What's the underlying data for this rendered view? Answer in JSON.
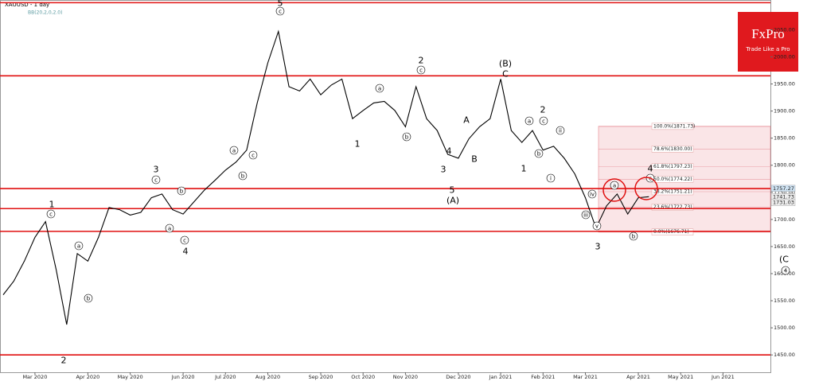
{
  "chart_data": {
    "type": "line",
    "title": "XAUUSD - 1 day",
    "indicator": "BB(20,2,0,2.0)",
    "categories": [
      null,
      null,
      null,
      "Mar 2020",
      null,
      null,
      null,
      null,
      "Apr 2020",
      null,
      null,
      null,
      "May 2020",
      null,
      null,
      null,
      null,
      "Jun 2020",
      null,
      null,
      null,
      "Jul 2020",
      null,
      null,
      null,
      "Aug 2020",
      null,
      null,
      null,
      null,
      "Sep 2020",
      null,
      null,
      null,
      "Oct 2020",
      null,
      null,
      null,
      "Nov 2020",
      null,
      null,
      null,
      null,
      "Dec 2020",
      null,
      null,
      null,
      "Jan 2021",
      null,
      null,
      null,
      "Feb 2021",
      null,
      null,
      null,
      "Mar 2021",
      null,
      null,
      null,
      null,
      "Apr 2021",
      null,
      null,
      null,
      "May 2021",
      null,
      null,
      null,
      "Jun 2021"
    ],
    "series": [
      {
        "name": "XAUUSD",
        "color": "#000000",
        "values": [
          1561,
          1586,
          1623,
          1667,
          1696,
          1608,
          1506,
          1637,
          1623,
          1667,
          1722,
          1718,
          1708,
          1713,
          1740,
          1747,
          1718,
          1710,
          1732,
          1754,
          1772,
          1791,
          1806,
          1828,
          1915,
          1989,
          2047,
          1945,
          1937,
          1959,
          1930,
          1948,
          1959,
          1886,
          1901,
          1915,
          1918,
          1901,
          1871,
          1945,
          1886,
          1864,
          1820,
          1813,
          1849,
          1871,
          1886,
          1959,
          1864,
          1842,
          1864,
          1828,
          1835,
          1813,
          1784,
          1740,
          1684,
          1725,
          1747,
          1710,
          1740,
          1742,
          null,
          null,
          null,
          null,
          null,
          null,
          null
        ]
      }
    ],
    "ylim": [
      1418,
      2102
    ],
    "yticks": [
      {
        "value": 1450,
        "label": "1450.00"
      },
      {
        "value": 1500,
        "label": "1500.00"
      },
      {
        "value": 1550,
        "label": "1550.00"
      },
      {
        "value": 1600,
        "label": "1600.00"
      },
      {
        "value": 1650,
        "label": "1650.00"
      },
      {
        "value": 1700,
        "label": "1700.00"
      },
      {
        "value": 1750,
        "label": "1750.00"
      },
      {
        "value": 1800,
        "label": "1800.00"
      },
      {
        "value": 1850,
        "label": "1850.00"
      },
      {
        "value": 1900,
        "label": "1900.00"
      },
      {
        "value": 1950,
        "label": "1950.00"
      },
      {
        "value": 2000,
        "label": "2000.00"
      },
      {
        "value": 2050,
        "label": "2050.00"
      }
    ],
    "hlines": [
      2100,
      1965,
      1757,
      1720,
      1678,
      1450
    ],
    "hline_color": "#e01010",
    "fib_levels": [
      {
        "value": 1871.73,
        "label": "100.0%(1871.73)"
      },
      {
        "value": 1830.0,
        "label": "78.6%(1830.00)"
      },
      {
        "value": 1797.23,
        "label": "61.8%(1797.23)"
      },
      {
        "value": 1774.22,
        "label": "50.0%(1774.22)"
      },
      {
        "value": 1751.21,
        "label": "38.2%(1751.21)"
      },
      {
        "value": 1722.73,
        "label": "23.6%(1722.73)"
      },
      {
        "value": 1676.71,
        "label": "0.0%(1676.71)"
      }
    ],
    "price_labels": [
      1757.27,
      1741.73,
      1731.03
    ],
    "wave_labels": [
      "1",
      "c",
      "2",
      "a",
      "b",
      "3",
      "c",
      "b",
      "a",
      "c",
      "4",
      "a",
      "b",
      "c",
      "5",
      "c",
      "a",
      "b",
      "1",
      "2",
      "c",
      "4",
      "3",
      "5",
      "(A)",
      "A",
      "B",
      "(B)",
      "C",
      "1",
      "a",
      "b",
      "c",
      "2",
      "i",
      "ii",
      "iv",
      "iii",
      "v",
      "3",
      "a",
      "b",
      "c",
      "4",
      "(C",
      "4"
    ]
  },
  "logo": {
    "title": "FxPro",
    "tagline": "Trade Like a Pro"
  }
}
